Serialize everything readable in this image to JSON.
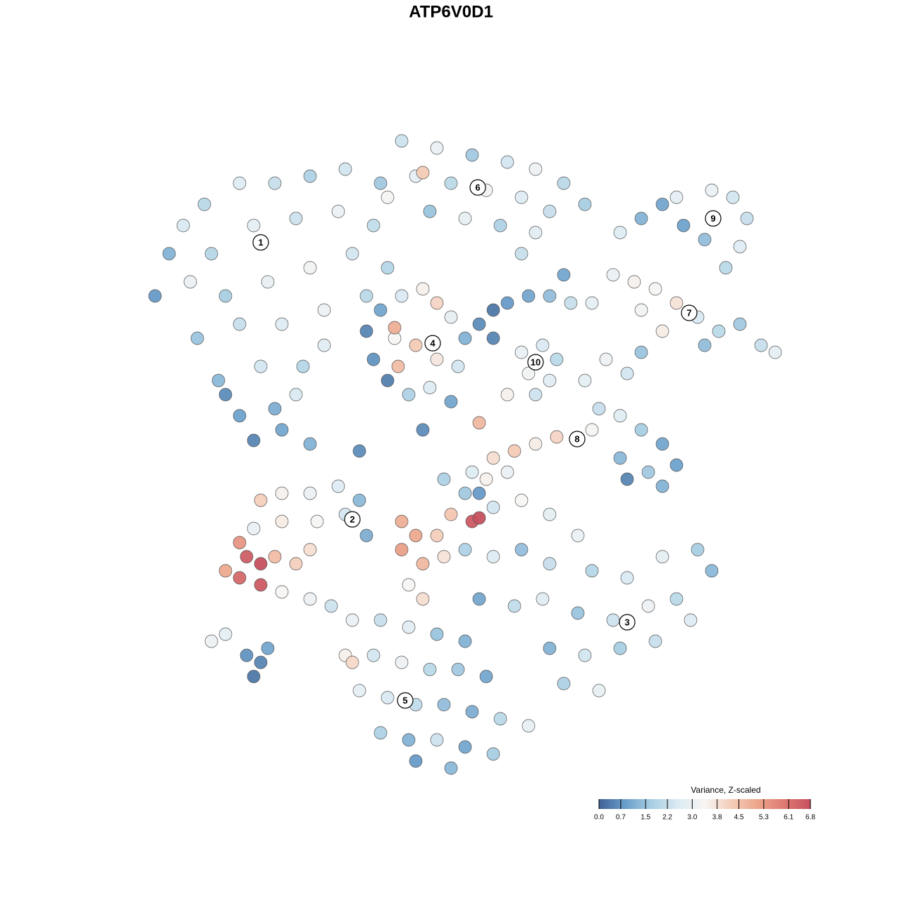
{
  "chart_data": {
    "type": "scatter",
    "title": "ATP6V0D1",
    "xlim": [
      -64,
      64
    ],
    "ylim": [
      -64,
      64
    ],
    "x": [
      -40,
      -42,
      -38,
      -35,
      -30,
      -25,
      -20,
      -15,
      -10,
      -34,
      -28,
      -22,
      -16,
      -11,
      -32,
      -26,
      -20,
      -14,
      -9,
      -36,
      -30,
      -24,
      -18,
      -12,
      -33,
      -27,
      -21,
      -30,
      -25,
      -32,
      -22,
      -37,
      -28,
      -24,
      -18,
      -7,
      -2,
      3,
      8,
      12,
      16,
      19,
      -5,
      0,
      5,
      10,
      14,
      -3,
      2,
      7,
      12,
      -9,
      -4,
      24,
      27,
      30,
      33,
      36,
      37,
      40,
      42,
      41,
      39,
      32,
      23,
      26,
      29,
      32,
      27,
      35,
      38,
      41,
      44,
      46,
      30,
      36,
      -12,
      -10,
      -7,
      -4,
      -2,
      0,
      2,
      -11,
      -8,
      -5,
      -2,
      1,
      -9,
      -6,
      -3,
      0,
      -7.5,
      -8,
      4,
      6,
      8,
      11,
      14,
      17,
      6,
      20,
      10,
      13,
      15,
      11,
      14,
      12,
      19,
      22,
      25,
      27,
      21,
      24,
      27,
      30,
      24,
      28,
      32,
      25,
      30,
      20,
      15,
      12,
      9,
      6,
      5,
      8,
      3,
      4,
      -27,
      -24,
      -20,
      -16,
      -13,
      -28,
      -24,
      -19,
      -15,
      -12,
      -29,
      -27,
      -30,
      -27,
      -32,
      -25,
      -22,
      -20,
      -24,
      -20,
      -17,
      -30,
      -7,
      -5,
      -7,
      -4,
      -2,
      0,
      3,
      4,
      -1,
      -6,
      -4,
      2,
      6,
      10,
      14,
      18,
      2,
      6,
      10,
      14,
      20,
      25,
      30,
      35,
      37,
      4,
      9,
      13,
      18,
      23,
      28,
      32,
      34,
      14,
      19,
      24,
      29,
      16,
      21,
      -14,
      -10,
      -6,
      -2,
      2,
      -15,
      -11,
      -7,
      -3,
      1,
      5,
      -13,
      -9,
      -5,
      -1,
      3,
      7,
      11,
      -10,
      -6,
      -2,
      2,
      6,
      -5,
      0,
      -14,
      -34,
      -32,
      -29,
      -27,
      -28,
      -26,
      -20,
      -13,
      -4,
      -1,
      8,
      4,
      16,
      10
    ],
    "y": [
      28,
      22,
      32,
      35,
      38,
      38,
      39,
      40,
      38,
      28,
      32,
      33,
      34,
      32,
      22,
      24,
      26,
      28,
      26,
      16,
      18,
      18,
      20,
      22,
      10,
      12,
      12,
      5,
      6,
      8,
      8,
      24,
      1.5,
      3,
      15,
      44,
      43,
      42,
      41,
      40,
      38,
      35,
      39,
      38,
      37,
      36,
      34,
      34,
      33,
      32,
      31,
      36,
      39.5,
      31,
      33,
      35,
      32,
      30,
      37,
      36,
      33,
      29,
      26,
      36,
      25,
      24,
      23,
      21,
      20,
      19,
      17,
      18,
      15,
      14,
      17,
      15,
      17,
      20,
      22,
      23,
      21,
      19,
      16,
      13,
      16,
      15,
      13,
      12,
      10,
      8,
      9,
      7,
      12,
      17.5,
      18,
      20,
      21,
      22,
      22,
      21,
      16,
      21,
      14,
      15,
      13,
      11,
      10,
      8,
      10,
      13,
      11,
      14,
      6,
      5,
      3,
      1,
      -1,
      -3,
      -2,
      -4,
      -5,
      3,
      2,
      1,
      0,
      -1,
      -4,
      -3,
      -3,
      4,
      -7,
      -6,
      -6,
      -5,
      -7,
      -11,
      -10,
      -10,
      -9,
      -12,
      -15,
      -16,
      -18,
      -19,
      -17,
      -15,
      -16,
      -14,
      -20,
      -21,
      -22,
      -13,
      -10,
      -12,
      -14,
      -16,
      -12,
      -9,
      -10,
      -9.5,
      -15,
      -19,
      -21,
      -6,
      -8,
      -7,
      -9,
      -12,
      -14,
      -15,
      -14,
      -16,
      -17,
      -18,
      -15,
      -14,
      -17,
      -21,
      -22,
      -21,
      -23,
      -24,
      -22,
      -21,
      -24,
      -28,
      -29,
      -28,
      -27,
      -33,
      -34,
      -24,
      -24,
      -25,
      -26,
      -27,
      -29,
      -29,
      -30,
      -31,
      -31,
      -32,
      -34,
      -35,
      -36,
      -36,
      -37,
      -38,
      -39,
      -40,
      -41,
      -41,
      -42,
      -43,
      -44,
      -45,
      -30,
      -27,
      -26,
      -29,
      -30,
      -32,
      -28,
      1,
      0,
      3,
      -4,
      8,
      -6,
      25,
      28
    ],
    "values": [
      1.2,
      0.8,
      2.5,
      2.0,
      2.6,
      2.2,
      1.8,
      2.4,
      1.6,
      1.9,
      2.8,
      2.3,
      3.0,
      2.1,
      1.7,
      2.9,
      3.2,
      2.4,
      1.9,
      1.5,
      2.2,
      2.6,
      3.1,
      2.0,
      1.3,
      2.4,
      1.9,
      0.9,
      1.1,
      0.6,
      2.5,
      3.0,
      0.5,
      1.0,
      2.7,
      2.3,
      3.0,
      1.6,
      2.4,
      3.1,
      2.0,
      1.7,
      2.8,
      2.0,
      3.2,
      2.6,
      2.2,
      1.5,
      2.9,
      1.8,
      2.7,
      3.3,
      4.3,
      2.6,
      1.2,
      1.0,
      0.9,
      1.4,
      3.0,
      2.4,
      2.2,
      2.6,
      2.0,
      2.8,
      3.0,
      3.5,
      3.3,
      3.8,
      3.2,
      2.5,
      2.0,
      1.6,
      2.2,
      2.8,
      3.6,
      1.4,
      0.5,
      1.0,
      2.5,
      3.5,
      4.1,
      2.8,
      1.2,
      0.7,
      3.4,
      4.3,
      3.7,
      2.4,
      0.4,
      1.8,
      2.6,
      1.0,
      4.6,
      4.9,
      0.6,
      0.3,
      0.8,
      1.0,
      1.4,
      2.2,
      0.5,
      2.8,
      3.0,
      2.5,
      2.0,
      3.2,
      2.7,
      2.3,
      2.8,
      3.1,
      2.4,
      1.5,
      2.2,
      2.7,
      1.7,
      1.0,
      1.3,
      1.6,
      0.9,
      0.5,
      1.2,
      3.3,
      4.1,
      3.6,
      4.3,
      3.9,
      3.5,
      3.0,
      2.6,
      4.7,
      4.2,
      3.5,
      3.0,
      2.6,
      1.3,
      3.0,
      3.6,
      3.3,
      2.4,
      1.1,
      6.5,
      6.8,
      6.3,
      6.6,
      5.0,
      4.6,
      4.2,
      3.9,
      3.4,
      3.1,
      2.3,
      5.4,
      4.9,
      5.0,
      5.2,
      4.7,
      4.2,
      4.4,
      6.6,
      6.8,
      3.8,
      3.4,
      3.9,
      1.6,
      2.4,
      3.4,
      2.8,
      3.0,
      1.8,
      2.6,
      1.4,
      2.2,
      1.9,
      2.5,
      2.8,
      1.7,
      1.3,
      1.0,
      2.1,
      2.7,
      1.5,
      2.3,
      3.1,
      2.0,
      2.6,
      1.2,
      2.4,
      1.7,
      2.2,
      1.8,
      2.9,
      3.0,
      2.2,
      2.7,
      1.5,
      1.2,
      3.5,
      2.4,
      3.1,
      2.0,
      1.6,
      1.0,
      2.8,
      2.5,
      2.1,
      1.4,
      1.1,
      2.0,
      2.9,
      1.8,
      1.2,
      2.3,
      1.0,
      1.7,
      0.8,
      1.3,
      4.0,
      3.1,
      2.8,
      0.7,
      0.5,
      0.3,
      1.0,
      1.2,
      0.6,
      0.6,
      1.8,
      3.5,
      0.8,
      1.0,
      2.2
    ],
    "annotations": [
      {
        "text": "1",
        "x": -27,
        "y": 29.6
      },
      {
        "text": "6",
        "x": 3.8,
        "y": 37.4
      },
      {
        "text": "9",
        "x": 37.2,
        "y": 33
      },
      {
        "text": "7",
        "x": 33.8,
        "y": 19.6
      },
      {
        "text": "4",
        "x": -2.6,
        "y": 15.3
      },
      {
        "text": "10",
        "x": 12,
        "y": 12.6
      },
      {
        "text": "8",
        "x": 17.9,
        "y": 1.7
      },
      {
        "text": "2",
        "x": -14,
        "y": -9.7
      },
      {
        "text": "3",
        "x": 25,
        "y": -24.3
      },
      {
        "text": "5",
        "x": -6.5,
        "y": -35.4
      }
    ],
    "legend": {
      "title": "Variance, Z-scaled",
      "position": "bottom-right",
      "clim": [
        0,
        6.8
      ],
      "colors": [
        "#3f6294",
        "#6a9fcb",
        "#a9cfe3",
        "#dcebf3",
        "#f7f5f3",
        "#f4cdb9",
        "#eca58b",
        "#de7b72",
        "#c6505f"
      ],
      "ticks": [
        {
          "value": 0,
          "label": "0.0"
        },
        0.7,
        1.5,
        2.2,
        {
          "value": 3,
          "label": "3.0"
        },
        3.8,
        4.5,
        5.3,
        6.1,
        6.8
      ]
    }
  }
}
